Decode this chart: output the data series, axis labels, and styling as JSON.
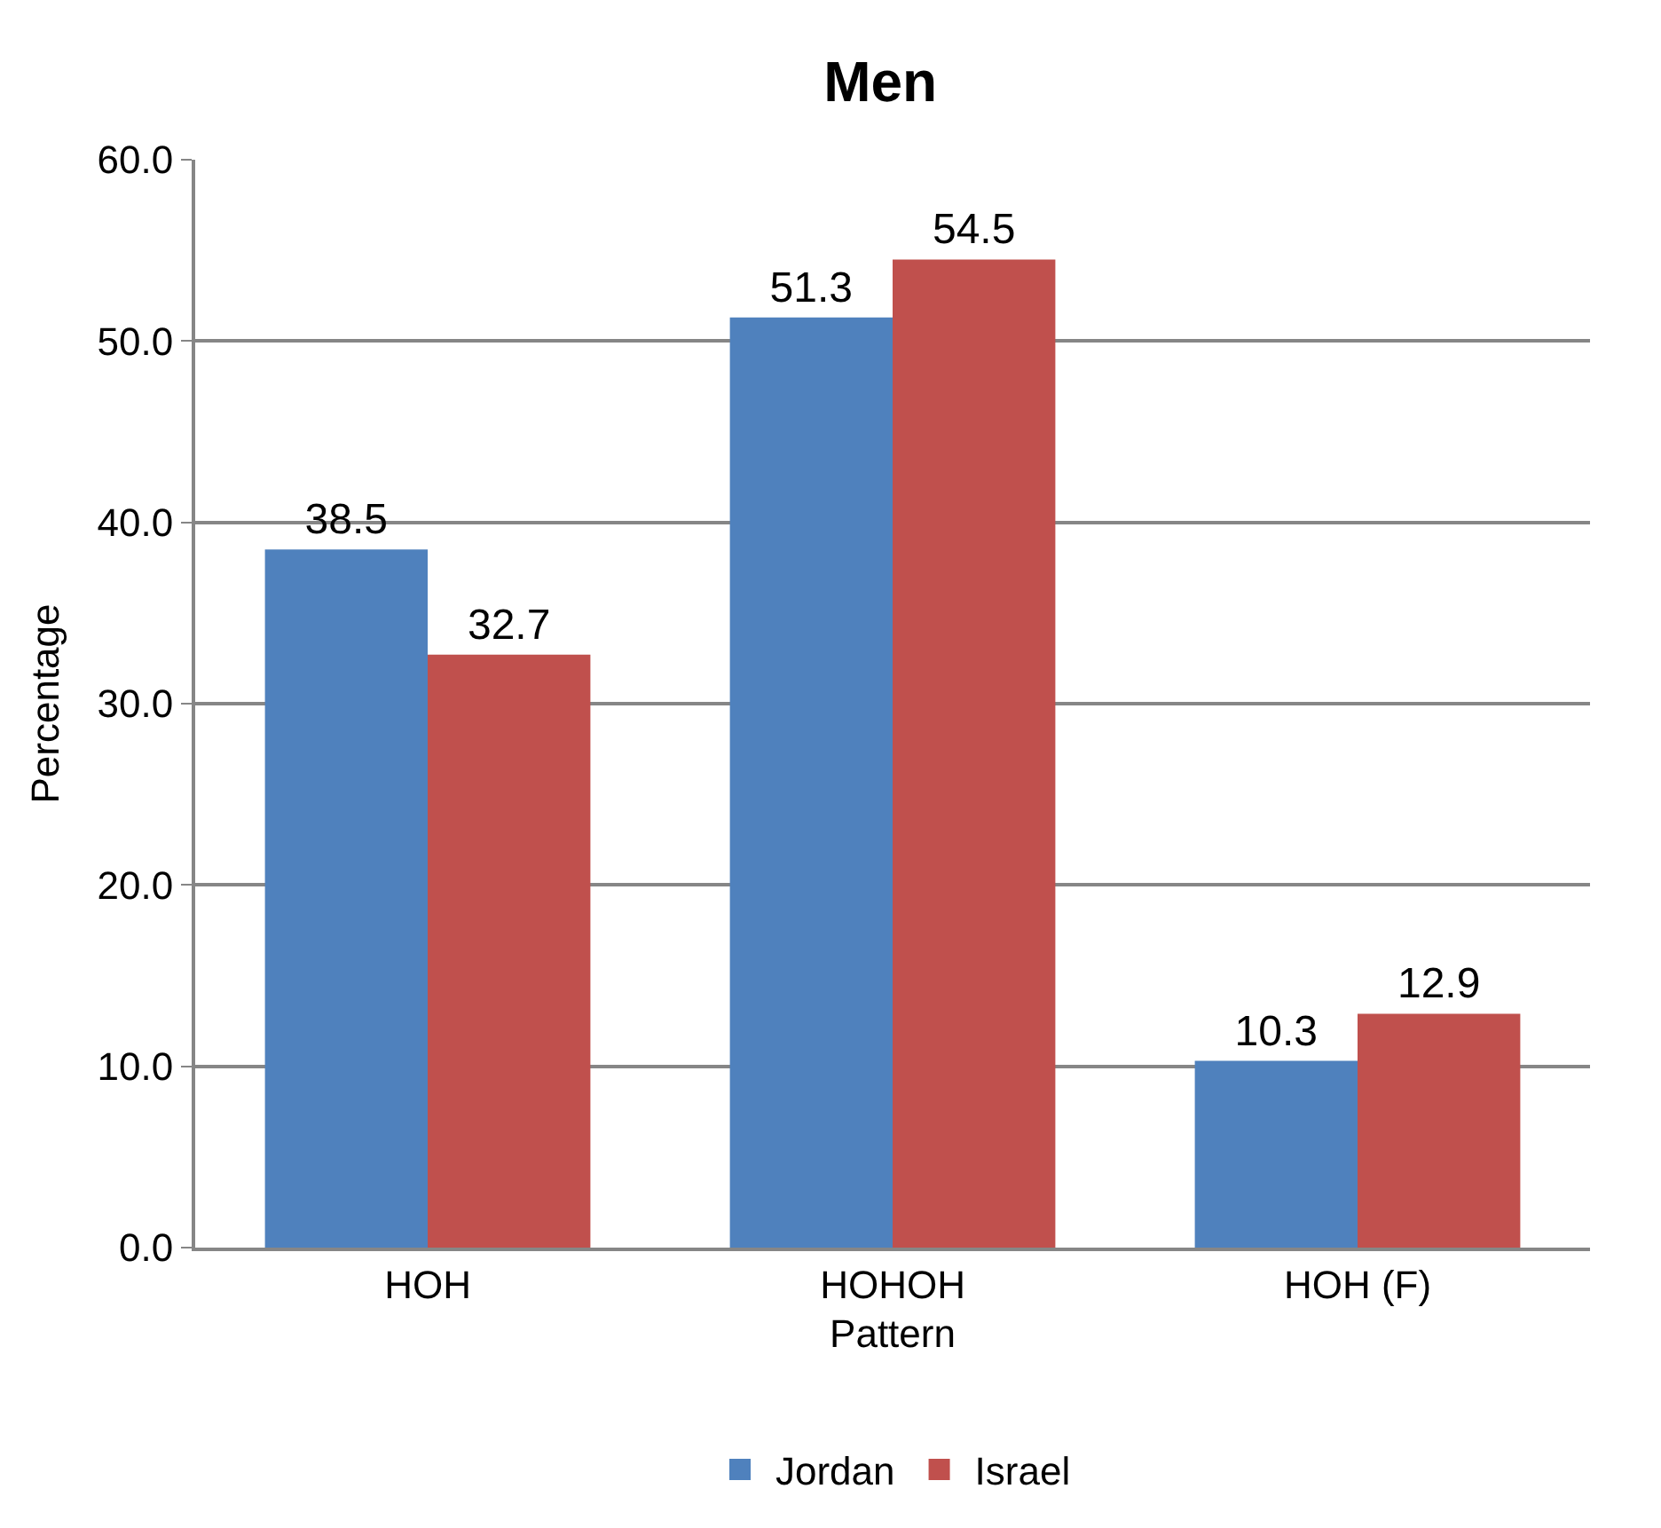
{
  "chart_data": {
    "type": "bar",
    "title": "Men",
    "xlabel": "Pattern",
    "ylabel": "Percentage",
    "categories": [
      "HOH",
      "HOHOH",
      "HOH (F)"
    ],
    "series": [
      {
        "name": "Jordan",
        "color": "#4f81bd",
        "values": [
          38.5,
          51.3,
          10.3
        ]
      },
      {
        "name": "Israel",
        "color": "#c0504d",
        "values": [
          32.7,
          54.5,
          12.9
        ]
      }
    ],
    "ylim": [
      0,
      60
    ],
    "yticks": [
      {
        "value": 0,
        "label": "0.0"
      },
      {
        "value": 10,
        "label": "10.0"
      },
      {
        "value": 20,
        "label": "20.0"
      },
      {
        "value": 30,
        "label": "30.0"
      },
      {
        "value": 40,
        "label": "40.0"
      },
      {
        "value": 50,
        "label": "50.0"
      },
      {
        "value": 60,
        "label": "60.0"
      }
    ],
    "grid": "y",
    "legend": "bottom",
    "data_labels": true
  }
}
